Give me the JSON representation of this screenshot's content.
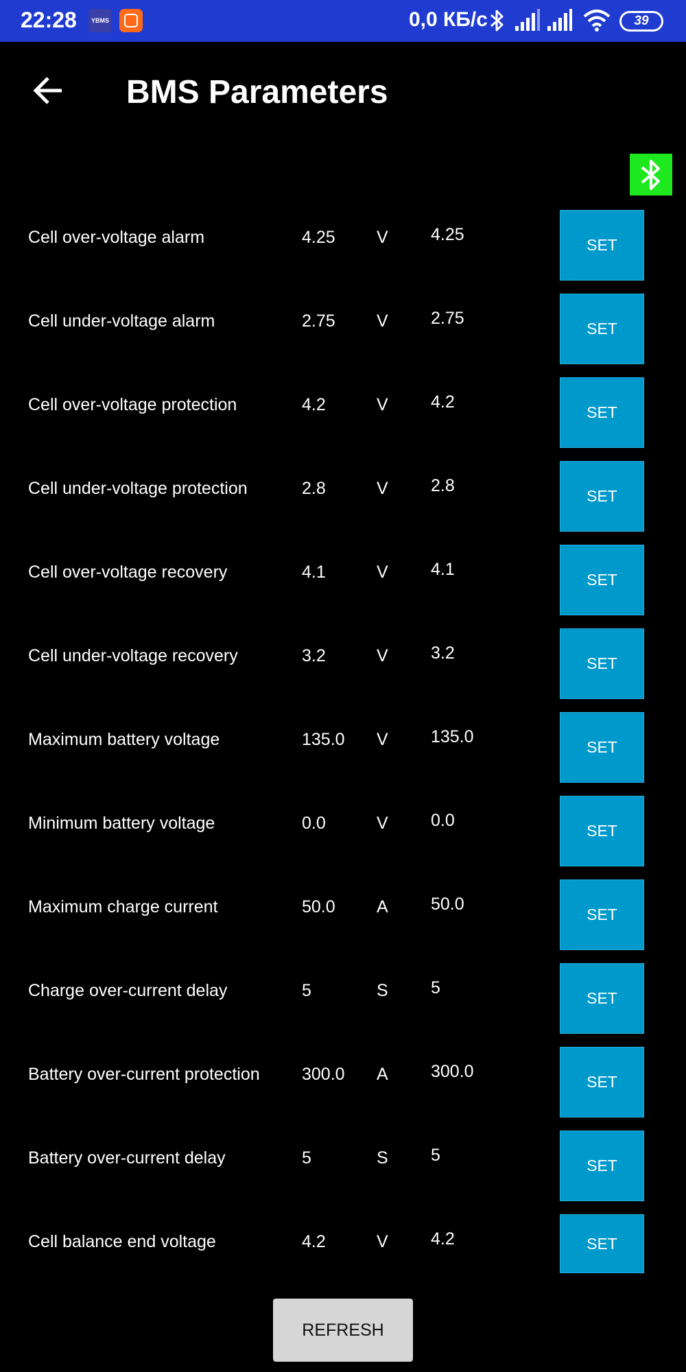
{
  "status_bar": {
    "time": "22:28",
    "app_icon_1": "YBMS",
    "network_speed": "0,0 КБ/с",
    "battery_level": "39",
    "icons": [
      "bluetooth-icon",
      "signal-icon",
      "signal-icon",
      "wifi-icon",
      "battery-icon"
    ]
  },
  "header": {
    "title": "BMS Parameters",
    "back_icon": "arrow-left-icon",
    "bluetooth_status_icon": "bluetooth-icon",
    "bluetooth_status_color": "#1ee81e"
  },
  "parameters": [
    {
      "label": "Cell over-voltage alarm",
      "value": "4.25",
      "unit": "V",
      "input": "4.25",
      "button": "SET"
    },
    {
      "label": "Cell under-voltage alarm",
      "value": "2.75",
      "unit": "V",
      "input": "2.75",
      "button": "SET"
    },
    {
      "label": "Cell over-voltage protection",
      "value": "4.2",
      "unit": "V",
      "input": "4.2",
      "button": "SET"
    },
    {
      "label": "Cell under-voltage protection",
      "value": "2.8",
      "unit": "V",
      "input": "2.8",
      "button": "SET"
    },
    {
      "label": "Cell over-voltage recovery",
      "value": "4.1",
      "unit": "V",
      "input": "4.1",
      "button": "SET"
    },
    {
      "label": "Cell under-voltage recovery",
      "value": "3.2",
      "unit": "V",
      "input": "3.2",
      "button": "SET"
    },
    {
      "label": "Maximum battery voltage",
      "value": "135.0",
      "unit": "V",
      "input": "135.0",
      "button": "SET"
    },
    {
      "label": "Minimum battery voltage",
      "value": "0.0",
      "unit": "V",
      "input": "0.0",
      "button": "SET"
    },
    {
      "label": "Maximum charge current",
      "value": "50.0",
      "unit": "A",
      "input": "50.0",
      "button": "SET"
    },
    {
      "label": "Charge over-current delay",
      "value": "5",
      "unit": "S",
      "input": "5",
      "button": "SET"
    },
    {
      "label": "Battery over-current protection",
      "value": "300.0",
      "unit": "A",
      "input": "300.0",
      "button": "SET"
    },
    {
      "label": "Battery over-current delay",
      "value": "5",
      "unit": "S",
      "input": "5",
      "button": "SET"
    },
    {
      "label": "Cell balance end voltage",
      "value": "4.2",
      "unit": "V",
      "input": "4.2",
      "button": "SET"
    }
  ],
  "footer": {
    "refresh_label": "REFRESH"
  },
  "colors": {
    "status_bar": "#1f3bd0",
    "background": "#000000",
    "set_button": "#0099cc",
    "refresh_button": "#d6d6d6"
  }
}
